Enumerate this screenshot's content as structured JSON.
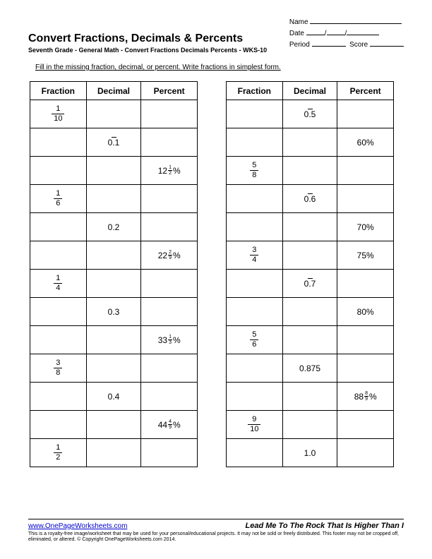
{
  "header": {
    "name_label": "Name",
    "date_label": "Date",
    "period_label": "Period",
    "score_label": "Score"
  },
  "title": "Convert Fractions, Decimals & Percents",
  "subtitle": "Seventh Grade - General Math - Convert Fractions Decimals Percents - WKS-10",
  "instruction": "Fill in the missing fraction, decimal, or percent.  Write fractions in simplest form.",
  "columns": [
    "Fraction",
    "Decimal",
    "Percent"
  ],
  "left_rows": [
    {
      "fraction": {
        "n": "1",
        "d": "10"
      },
      "decimal": null,
      "percent": null
    },
    {
      "fraction": null,
      "decimal": {
        "type": "rep",
        "lead": "0.",
        "rep": "1"
      },
      "percent": null
    },
    {
      "fraction": null,
      "decimal": null,
      "percent": {
        "type": "mix",
        "whole": "12",
        "n": "1",
        "d": "2",
        "suffix": "%"
      }
    },
    {
      "fraction": {
        "n": "1",
        "d": "6"
      },
      "decimal": null,
      "percent": null
    },
    {
      "fraction": null,
      "decimal": {
        "type": "plain",
        "val": "0.2"
      },
      "percent": null
    },
    {
      "fraction": null,
      "decimal": null,
      "percent": {
        "type": "mix",
        "whole": "22",
        "n": "2",
        "d": "9",
        "suffix": "%"
      }
    },
    {
      "fraction": {
        "n": "1",
        "d": "4"
      },
      "decimal": null,
      "percent": null
    },
    {
      "fraction": null,
      "decimal": {
        "type": "plain",
        "val": "0.3"
      },
      "percent": null
    },
    {
      "fraction": null,
      "decimal": null,
      "percent": {
        "type": "mix",
        "whole": "33",
        "n": "1",
        "d": "3",
        "suffix": "%"
      }
    },
    {
      "fraction": {
        "n": "3",
        "d": "8"
      },
      "decimal": null,
      "percent": null
    },
    {
      "fraction": null,
      "decimal": {
        "type": "plain",
        "val": "0.4"
      },
      "percent": null
    },
    {
      "fraction": null,
      "decimal": null,
      "percent": {
        "type": "mix",
        "whole": "44",
        "n": "4",
        "d": "9",
        "suffix": "%"
      }
    },
    {
      "fraction": {
        "n": "1",
        "d": "2"
      },
      "decimal": null,
      "percent": null
    }
  ],
  "right_rows": [
    {
      "fraction": null,
      "decimal": {
        "type": "rep",
        "lead": "0.",
        "rep": "5"
      },
      "percent": null
    },
    {
      "fraction": null,
      "decimal": null,
      "percent": {
        "type": "plain",
        "val": "60%"
      }
    },
    {
      "fraction": {
        "n": "5",
        "d": "8"
      },
      "decimal": null,
      "percent": null
    },
    {
      "fraction": null,
      "decimal": {
        "type": "rep",
        "lead": "0.",
        "rep": "6"
      },
      "percent": null
    },
    {
      "fraction": null,
      "decimal": null,
      "percent": {
        "type": "plain",
        "val": "70%"
      }
    },
    {
      "fraction": {
        "n": "3",
        "d": "4"
      },
      "decimal": null,
      "percent": {
        "type": "plain",
        "val": "75%"
      }
    },
    {
      "fraction": null,
      "decimal": {
        "type": "rep",
        "lead": "0.",
        "rep": "7"
      },
      "percent": null
    },
    {
      "fraction": null,
      "decimal": null,
      "percent": {
        "type": "plain",
        "val": "80%"
      }
    },
    {
      "fraction": {
        "n": "5",
        "d": "6"
      },
      "decimal": null,
      "percent": null
    },
    {
      "fraction": null,
      "decimal": {
        "type": "plain",
        "val": "0.875"
      },
      "percent": null
    },
    {
      "fraction": null,
      "decimal": null,
      "percent": {
        "type": "mix",
        "whole": "88",
        "n": "8",
        "d": "9",
        "suffix": "%"
      }
    },
    {
      "fraction": {
        "n": "9",
        "d": "10"
      },
      "decimal": null,
      "percent": null
    },
    {
      "fraction": null,
      "decimal": {
        "type": "plain",
        "val": "1.0"
      },
      "percent": null
    }
  ],
  "footer": {
    "link": "www.OnePageWorksheets.com",
    "motto": "Lead Me To The Rock That Is Higher Than I",
    "fine": "This is a royalty-free image/worksheet that may be used for your personal/educational projects. It may not be sold or freely distributed. This footer may not be cropped off, eliminated, or altered. © Copyright OnePageWorksheets.com 2014."
  }
}
